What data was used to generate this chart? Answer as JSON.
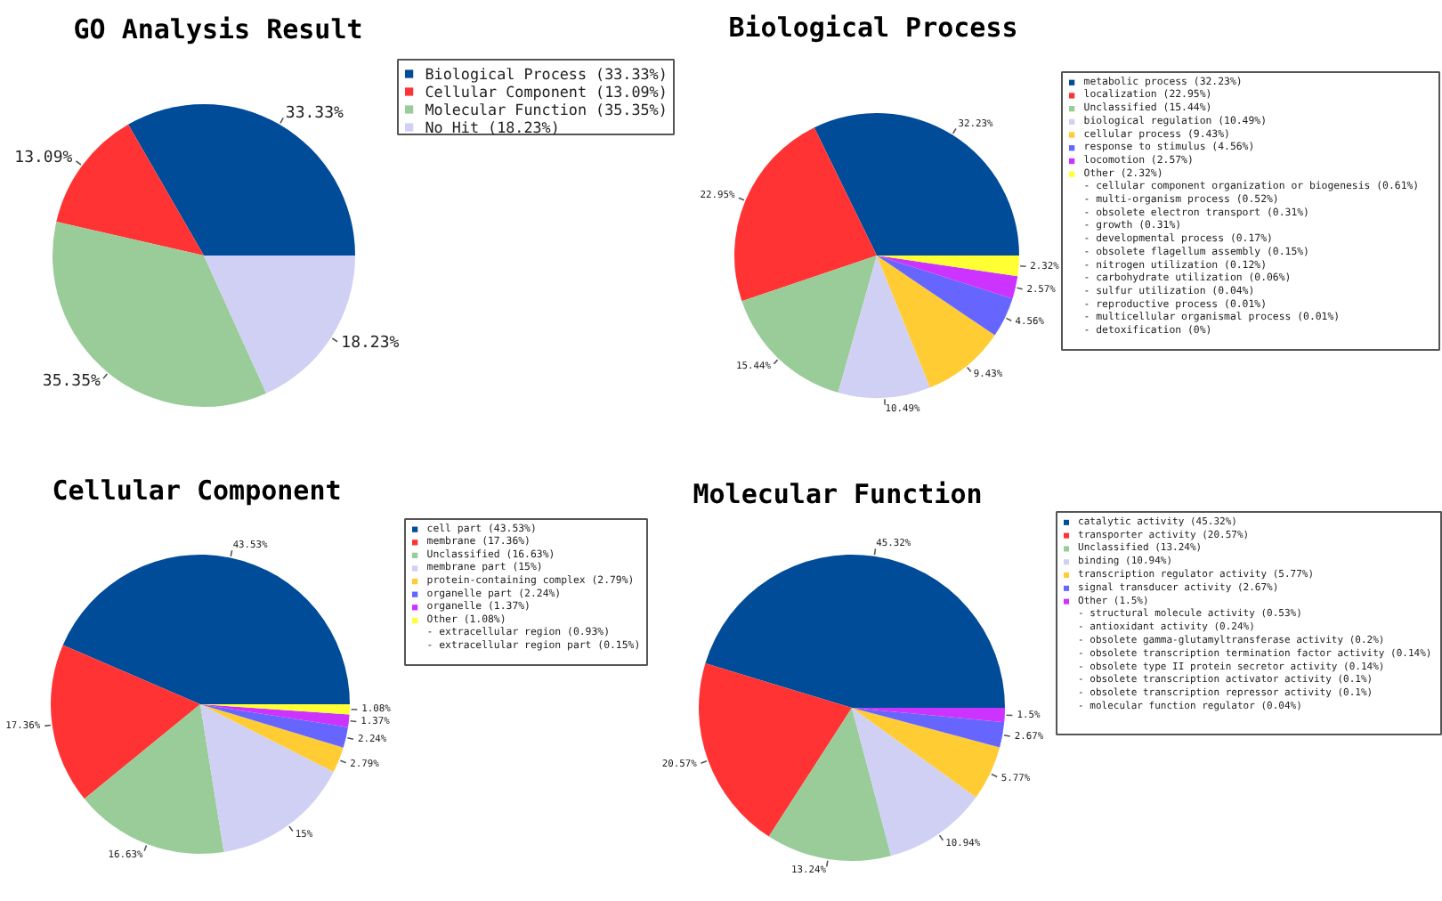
{
  "chart_data": [
    {
      "type": "pie",
      "title": "GO Analysis Result",
      "categories": [
        "Biological Process (33.33%)",
        "Cellular Component (13.09%)",
        "Molecular Function (35.35%)",
        "No Hit (18.23%)"
      ],
      "values": [
        33.33,
        13.09,
        35.35,
        18.23
      ],
      "value_labels": [
        "33.33%",
        "13.09%",
        "35.35%",
        "18.23%"
      ],
      "colors": [
        "#004c99",
        "#ff3333",
        "#99cc99",
        "#d0d0f5"
      ],
      "legend": "right"
    },
    {
      "type": "pie",
      "title": "Cellular Component",
      "categories": [
        "cell part (43.53%)",
        "membrane (17.36%)",
        "Unclassified (16.63%)",
        "membrane part (15%)",
        "protein-containing complex (2.79%)",
        "organelle part (2.24%)",
        "organelle (1.37%)",
        "Other (1.08%)"
      ],
      "values": [
        43.53,
        17.36,
        16.63,
        15,
        2.79,
        2.24,
        1.37,
        1.08
      ],
      "value_labels": [
        "43.53%",
        "17.36%",
        "16.63%",
        "15%",
        "2.79%",
        "2.24%",
        "1.37%",
        "1.08%"
      ],
      "colors": [
        "#004c99",
        "#ff3333",
        "#99cc99",
        "#d0d0f5",
        "#ffcc33",
        "#6666ff",
        "#cc33ff",
        "#ffff33"
      ],
      "legend": "right",
      "annotations": [
        "- extracellular region (0.93%)",
        "- extracellular region part (0.15%)"
      ]
    },
    {
      "type": "pie",
      "title": "Biological Process",
      "categories": [
        "metabolic process (32.23%)",
        "localization (22.95%)",
        "Unclassified (15.44%)",
        "biological regulation (10.49%)",
        "cellular process (9.43%)",
        "response to stimulus (4.56%)",
        "locomotion (2.57%)",
        "Other (2.32%)"
      ],
      "values": [
        32.23,
        22.95,
        15.44,
        10.49,
        9.43,
        4.56,
        2.57,
        2.32
      ],
      "value_labels": [
        "32.23%",
        "22.95%",
        "15.44%",
        "10.49%",
        "9.43%",
        "4.56%",
        "2.57%",
        "2.32%"
      ],
      "colors": [
        "#004c99",
        "#ff3333",
        "#99cc99",
        "#d0d0f5",
        "#ffcc33",
        "#6666ff",
        "#cc33ff",
        "#ffff33"
      ],
      "legend": "right",
      "annotations": [
        "- cellular component organization or biogenesis (0.61%)",
        "- multi-organism process (0.52%)",
        "- obsolete electron transport (0.31%)",
        "- growth (0.31%)",
        "- developmental process (0.17%)",
        "- obsolete flagellum assembly (0.15%)",
        "- nitrogen utilization (0.12%)",
        "- carbohydrate utilization (0.06%)",
        "- sulfur utilization (0.04%)",
        "- reproductive process (0.01%)",
        "- multicellular organismal process (0.01%)",
        "- detoxification (0%)"
      ]
    },
    {
      "type": "pie",
      "title": "Molecular Function",
      "categories": [
        "catalytic activity (45.32%)",
        "transporter activity (20.57%)",
        "Unclassified (13.24%)",
        "binding (10.94%)",
        "transcription regulator activity (5.77%)",
        "signal transducer activity (2.67%)",
        "Other (1.5%)"
      ],
      "values": [
        45.32,
        20.57,
        13.24,
        10.94,
        5.77,
        2.67,
        1.5
      ],
      "value_labels": [
        "45.32%",
        "20.57%",
        "13.24%",
        "10.94%",
        "5.77%",
        "2.67%",
        "1.5%"
      ],
      "colors": [
        "#004c99",
        "#ff3333",
        "#99cc99",
        "#d0d0f5",
        "#ffcc33",
        "#6666ff",
        "#cc33ff"
      ],
      "legend": "right",
      "annotations": [
        "- structural molecule activity (0.53%)",
        "- antioxidant activity (0.24%)",
        "- obsolete gamma-glutamyltransferase activity (0.2%)",
        "- obsolete transcription termination factor activity (0.14%)",
        "- obsolete type II protein secretor activity (0.14%)",
        "- obsolete transcription activator activity (0.1%)",
        "- obsolete transcription repressor activity (0.1%)",
        "- molecular function regulator (0.04%)"
      ]
    }
  ]
}
